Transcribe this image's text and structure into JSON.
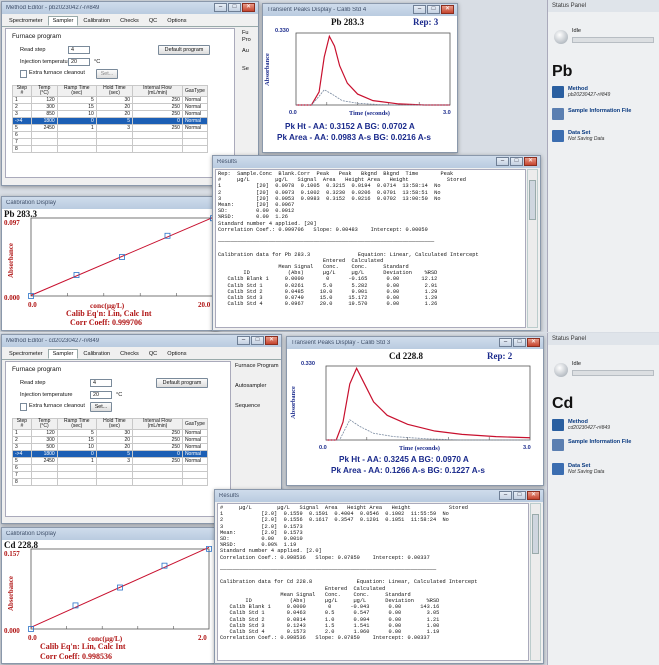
{
  "top": {
    "method": {
      "title": "Method Editor - pb20230427-r#849",
      "tabs": [
        "Spectrometer",
        "Sampler",
        "Calibration",
        "Checks",
        "QC",
        "Options"
      ],
      "furnace_label": "Furnace program",
      "read_step_label": "Read step",
      "read_step_value": "4",
      "injection_label": "Injection temperature",
      "injection_value": "20",
      "injection_unit": "°C",
      "extra_cleanout": "Extra furnace cleanout",
      "set_button": "Set...",
      "default_button": "Default program",
      "headers": [
        "Step #",
        "Temp (°C)",
        "Ramp Time (sec)",
        "Hold Time (sec)",
        "Internal Flow (mL/min)",
        "GasType"
      ],
      "rows": [
        [
          "1",
          "120",
          "5",
          "30",
          "250",
          "Normal"
        ],
        [
          "2",
          "300",
          "15",
          "20",
          "250",
          "Normal"
        ],
        [
          "3",
          "850",
          "10",
          "20",
          "250",
          "Normal"
        ],
        [
          "->4",
          "1800",
          "0",
          "5",
          "0",
          "Normal"
        ],
        [
          "5",
          "2450",
          "1",
          "3",
          "250",
          "Normal"
        ],
        [
          "6",
          "",
          "",
          "",
          "",
          ""
        ],
        [
          "7",
          "",
          "",
          "",
          "",
          ""
        ],
        [
          "8",
          "",
          "",
          "",
          "",
          ""
        ]
      ],
      "side_labels": [
        "Fu",
        "Pro",
        "Au",
        "Se"
      ]
    },
    "transient": {
      "title": "Transient Peaks Display - Calib Std 4",
      "element": "Pb 283.3",
      "rep": "Rep: 3",
      "ytop": "0.330",
      "ylabel": "Absorbance",
      "xlabel": "Time (seconds)",
      "x0": "0.0",
      "xend": "3.0",
      "line1": "Pk Ht - AA: 0.3152 A    BG: 0.0702 A",
      "line2": "Pk Area - AA: 0.0983 A-s  BG: 0.0216 A-s"
    },
    "results": {
      "title": "Results",
      "text": "Rep:  Sample.Conc  Blank.Corr  Peak   Peak   Bkgnd  Bkgnd  Time       Peak\n#     µg/L        µg/L   Signal  Area   Height Area   Height            Stored\n1           [20]  0.0978  0.1005  0.3215  0.0194  0.0714  13:58:14  No\n2           [20]  0.0973  0.1002  0.3230  0.0206  0.0701  13:58:51  No\n3           [20]  0.0953  0.0983  0.3152  0.0216  0.0702  13:00:50  No\nMean:       [20]  0.0967\nSD:         0.00  0.0012\n%RSD:       0.00  1.26\nStandard number 4 applied. [20]\nCorrelation Coef.: 0.999706   Slope: 0.00483    Intercept: 0.00059\n\n────────────────────────────────────────────────────────────────────\n\nCalibration data for Pb 283.3               Equation: Linear, Calculated Intercept\n                                 Entered  Calculated\n                   Mean Signal   Conc.    Conc.     Standard\n        ID            (Abs)      µg/L     µg/L      Deviation    %RSD\n   Calib Blank 1     0.0000       0      -0.165      0.00       12.12\n   Calib Std 1       0.0261      5.0      5.282      0.00        2.91\n   Calib Std 2       0.0485     10.0      9.901      0.00        1.29\n   Calib Std 3       0.0749     15.0     15.172      0.00        1.29\n   Calib Std 4       0.0967     20.0     19.570      0.00        1.26"
    },
    "calib": {
      "title": "Calibration Display",
      "element": "Pb 283.3",
      "ytop": "0.097",
      "y0": "0.000",
      "ylabel": "Absorbance",
      "xlabel": "conc(µg/L)",
      "x0": "0.0",
      "xend": "20.0",
      "eq": "Calib Eq'n: Lin, Calc Int",
      "corr": "Corr Coeff: 0.999706"
    },
    "status": {
      "title": "Status Panel",
      "state": "Idle",
      "element": "Pb",
      "method_label": "Method",
      "method_value": "pb20230427-r#849",
      "sample_info": "Sample Information File",
      "dataset_label": "Data Set",
      "dataset_value": "Not Saving Data"
    }
  },
  "bottom": {
    "method": {
      "title": "Method Editor - cd20230427-r#849",
      "tabs": [
        "Spectrometer",
        "Sampler",
        "Calibration",
        "Checks",
        "QC",
        "Options"
      ],
      "furnace_label": "Furnace program",
      "read_step_label": "Read step",
      "read_step_value": "4",
      "injection_label": "Injection temperature",
      "injection_value": "20",
      "injection_unit": "°C",
      "extra_cleanout": "Extra furnace cleanout",
      "set_button": "Set...",
      "default_button": "Default program",
      "headers": [
        "Step #",
        "Temp (°C)",
        "Ramp Time (sec)",
        "Hold Time (sec)",
        "Internal Flow (mL/min)",
        "GasType"
      ],
      "rows": [
        [
          "1",
          "120",
          "5",
          "30",
          "250",
          "Normal"
        ],
        [
          "2",
          "300",
          "15",
          "20",
          "250",
          "Normal"
        ],
        [
          "3",
          "500",
          "10",
          "20",
          "250",
          "Normal"
        ],
        [
          "->4",
          "1800",
          "0",
          "5",
          "0",
          "Normal"
        ],
        [
          "5",
          "2450",
          "1",
          "3",
          "250",
          "Normal"
        ],
        [
          "6",
          "",
          "",
          "",
          "",
          ""
        ],
        [
          "7",
          "",
          "",
          "",
          "",
          ""
        ],
        [
          "8",
          "",
          "",
          "",
          "",
          ""
        ]
      ],
      "side_labels": [
        "Furnace Program",
        "Autosampler",
        "Sequence"
      ]
    },
    "transient": {
      "title": "Transient Peaks Display - Calib Std 3",
      "element": "Cd 228.8",
      "rep": "Rep: 2",
      "ytop": "0.330",
      "ylabel": "Absorbance",
      "xlabel": "Time (seconds)",
      "x0": "0.0",
      "xend": "3.0",
      "line1": "Pk Ht - AA: 0.3245 A   BG: 0.0970 A",
      "line2": "Pk Area - AA: 0.1266 A-s  BG: 0.1227 A-s"
    },
    "results": {
      "title": "Results",
      "text": "#     µg/L        µg/L   Signal  Area   Height Area   Height            Stored\n1            [2.0]  0.1559  0.1591  0.4004  0.0546  0.1002  11:55:59  No\n2            [2.0]  0.1556  0.1617  0.3547  0.1201  0.1051  11:58:24  No\n3            [2.0]  0.1573\nMean:        [2.0]  0.1573\nSD:          0.00   0.0010\n%RSD:        0.00%  1.19\nStandard number 4 applied. [2.0]\nCorrelation Coef.: 0.998536   Slope: 0.07850    Intercept: 0.00337\n\n────────────────────────────────────────────────────────────────────\n\nCalibration data for Cd 228.8              Equation: Linear, Calculated Intercept\n                                 Entered  Calculated\n                   Mean Signal   Conc.    Conc.     Standard\n        ID            (Abs)      µg/L     µg/L      Deviation    %RSD\n   Calib Blank 1     0.0000       0      -0.043      0.00      143.16\n   Calib Std 1       0.0463      0.5      0.547      0.00        3.05\n   Calib Std 2       0.0814      1.0      0.994      0.00        1.21\n   Calib Std 3       0.1243      1.5      1.541      0.00        1.00\n   Calib Std 4       0.1573      2.0      1.960      0.00        1.19\nCorrelation Coef.: 0.998536   Slope: 0.07850    Intercept: 0.00337"
    },
    "calib": {
      "title": "Calibration Display",
      "element": "Cd 228.8",
      "ytop": "0.157",
      "y0": "0.000",
      "ylabel": "Absorbance",
      "xlabel": "conc(µg/L)",
      "x0": "0.0",
      "xend": "2.0",
      "eq": "Calib Eq'n: Lin, Calc Int",
      "corr": "Corr Coeff: 0.998536"
    },
    "status": {
      "title": "Status Panel",
      "state": "Idle",
      "element": "Cd",
      "method_label": "Method",
      "method_value": "cd20230427-r#849",
      "sample_info": "Sample Information File",
      "dataset_label": "Data Set",
      "dataset_value": "Not Saving Data"
    }
  },
  "chart_data": [
    {
      "type": "line",
      "title": "Pb 283.3",
      "xlabel": "Time (seconds)",
      "ylabel": "Absorbance",
      "xlim": [
        0,
        3.0
      ],
      "ylim": [
        0,
        0.33
      ],
      "series": [
        {
          "name": "AA",
          "x": [
            0,
            0.3,
            0.45,
            0.55,
            0.65,
            0.75,
            0.85,
            1.0,
            1.2,
            1.5,
            2.0,
            2.5,
            3.0
          ],
          "y": [
            0,
            0,
            0.06,
            0.22,
            0.315,
            0.27,
            0.18,
            0.1,
            0.05,
            0.02,
            0.005,
            0,
            0
          ]
        },
        {
          "name": "BG",
          "x": [
            0,
            0.3,
            0.45,
            0.55,
            0.7,
            0.9,
            1.2,
            1.6,
            2.0,
            3.0
          ],
          "y": [
            0,
            0,
            0.04,
            0.07,
            0.05,
            0.02,
            0.008,
            0.002,
            0,
            0
          ]
        }
      ]
    },
    {
      "type": "scatter",
      "title": "Pb 283.3",
      "xlabel": "conc(µg/L)",
      "ylabel": "Absorbance",
      "xlim": [
        0,
        20.0
      ],
      "ylim": [
        0,
        0.097
      ],
      "series": [
        {
          "name": "Calib",
          "x": [
            0,
            5,
            10,
            15,
            20
          ],
          "y": [
            0.0,
            0.0261,
            0.0485,
            0.0749,
            0.0967
          ]
        }
      ]
    },
    {
      "type": "line",
      "title": "Cd 228.8",
      "xlabel": "Time (seconds)",
      "ylabel": "Absorbance",
      "xlim": [
        0,
        3.0
      ],
      "ylim": [
        0,
        0.33
      ],
      "series": [
        {
          "name": "AA",
          "x": [
            0,
            0.15,
            0.25,
            0.35,
            0.45,
            0.55,
            0.7,
            0.9,
            1.2,
            1.6,
            2.0,
            2.5,
            3.0
          ],
          "y": [
            0,
            0,
            0.08,
            0.25,
            0.32,
            0.26,
            0.17,
            0.11,
            0.07,
            0.04,
            0.025,
            0.015,
            0.01
          ]
        },
        {
          "name": "BG",
          "x": [
            0,
            0.2,
            0.35,
            0.5,
            0.7,
            1.0,
            1.5,
            2.0,
            3.0
          ],
          "y": [
            0,
            0,
            0.09,
            0.06,
            0.03,
            0.015,
            0.005,
            0,
            0
          ]
        }
      ]
    },
    {
      "type": "scatter",
      "title": "Cd 228.8",
      "xlabel": "conc(µg/L)",
      "ylabel": "Absorbance",
      "xlim": [
        0,
        2.0
      ],
      "ylim": [
        0,
        0.157
      ],
      "series": [
        {
          "name": "Calib",
          "x": [
            0,
            0.5,
            1.0,
            1.5,
            2.0
          ],
          "y": [
            0.0,
            0.0463,
            0.0814,
            0.1243,
            0.1573
          ]
        }
      ]
    }
  ],
  "colors": {
    "aa_trace": "#c8102e",
    "bg_trace": "#7a8aa0",
    "readout": "#1a2a8c",
    "calib_line": "#c8102e",
    "calib_point": "#2a72c8",
    "selection": "#1c5fb5"
  },
  "window_buttons": {
    "minimize": "–",
    "maximize": "□",
    "close": "✕"
  }
}
